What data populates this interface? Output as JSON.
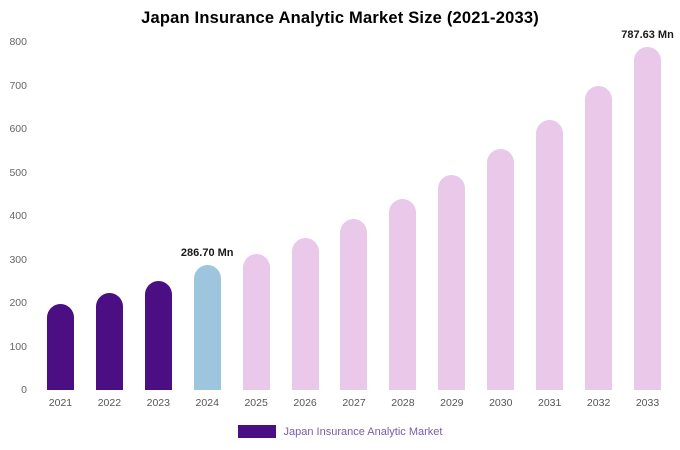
{
  "chart_data": {
    "type": "bar",
    "title": "Japan Insurance Analytic Market Size (2021-2033)",
    "categories": [
      "2021",
      "2022",
      "2023",
      "2024",
      "2025",
      "2026",
      "2027",
      "2028",
      "2029",
      "2030",
      "2031",
      "2032",
      "2033"
    ],
    "values": [
      197,
      222,
      250,
      286.7,
      313,
      350,
      394,
      440,
      494,
      553,
      620,
      698,
      787.63
    ],
    "xlabel": "",
    "ylabel": "",
    "ylim": [
      0,
      800
    ],
    "y_ticks": [
      0,
      100,
      200,
      300,
      400,
      500,
      600,
      700,
      800
    ],
    "grid": false,
    "bar_colors": [
      "#4b0e83",
      "#4b0e83",
      "#4b0e83",
      "#9dc6de",
      "#e9c8e9",
      "#e9c8e9",
      "#e9c8e9",
      "#e9c8e9",
      "#e9c8e9",
      "#e9c8e9",
      "#e9c8e9",
      "#e9c8e9",
      "#e9c8e9"
    ],
    "annotations": [
      {
        "category": "2024",
        "text": "286.70 Mn"
      },
      {
        "category": "2033",
        "text": "787.63 Mn"
      }
    ],
    "legend": {
      "label": "Japan Insurance Analytic Market",
      "swatch_color": "#4b0e83",
      "text_color": "#7a5ca8",
      "position": "bottom"
    }
  }
}
